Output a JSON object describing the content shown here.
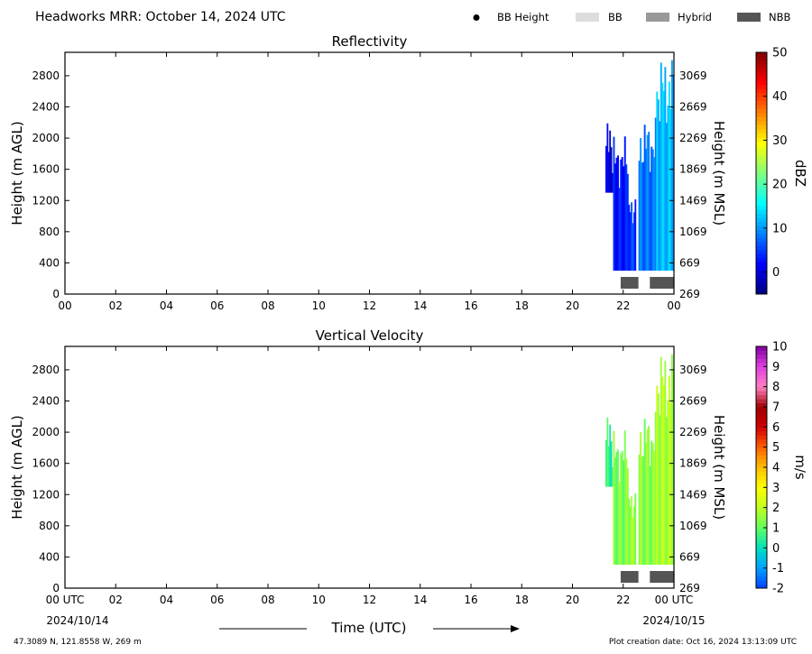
{
  "header": {
    "title": "Headworks MRR:  October 14, 2024 UTC",
    "legend": [
      {
        "label": "BB Height",
        "symbol": "dot",
        "color": "#000000"
      },
      {
        "label": "BB",
        "symbol": "rect",
        "color": "#dddddd"
      },
      {
        "label": "Hybrid",
        "symbol": "rect",
        "color": "#999999"
      },
      {
        "label": "NBB",
        "symbol": "rect",
        "color": "#555555"
      }
    ]
  },
  "footer": {
    "coords": "47.3089 N, 121.8558 W, 269 m",
    "creation": "Plot creation date: Oct 16, 2024 13:13:09 UTC",
    "xlabel": "Time (UTC)",
    "start_date": "2024/10/14",
    "end_date": "2024/10/15"
  },
  "chart_data": [
    {
      "type": "heatmap",
      "title": "Reflectivity",
      "ylabel": "Height (m AGL)",
      "ylabel_right": "Height (m MSL)",
      "xlim": [
        0,
        24
      ],
      "ylim": [
        0,
        3100
      ],
      "x_ticks": [
        "00",
        "02",
        "04",
        "06",
        "08",
        "10",
        "12",
        "14",
        "16",
        "18",
        "20",
        "22",
        "00"
      ],
      "y_ticks": [
        0,
        400,
        800,
        1200,
        1600,
        2000,
        2400,
        2800
      ],
      "y_ticks_right": [
        269,
        669,
        1069,
        1469,
        1869,
        2269,
        2669,
        3069
      ],
      "colorbar": {
        "label": "dBZ",
        "range": [
          -5,
          50
        ],
        "ticks": [
          0,
          10,
          20,
          30,
          40,
          50
        ],
        "colors": [
          "#00007f",
          "#0000ff",
          "#007fff",
          "#00ffff",
          "#7fff7f",
          "#ffff00",
          "#ff7f00",
          "#ff0000",
          "#7f0000"
        ]
      },
      "echo_segments": [
        {
          "t0": 21.3,
          "t1": 21.6,
          "bottom": 1300,
          "top": 1900,
          "value": 0
        },
        {
          "t0": 21.6,
          "t1": 22.2,
          "bottom": 300,
          "top": 1700,
          "value": 3
        },
        {
          "t0": 22.2,
          "t1": 22.5,
          "bottom": 300,
          "top": 1100,
          "value": 5
        },
        {
          "t0": 22.6,
          "t1": 23.3,
          "bottom": 300,
          "top": 1900,
          "value": 8
        },
        {
          "t0": 23.3,
          "t1": 24.0,
          "bottom": 300,
          "top": 2600,
          "value": 12
        }
      ],
      "bright_band_class": [
        {
          "t0": 21.9,
          "t1": 22.6,
          "class": "NBB"
        },
        {
          "t0": 23.05,
          "t1": 24.0,
          "class": "NBB"
        }
      ]
    },
    {
      "type": "heatmap",
      "title": "Vertical Velocity",
      "ylabel": "Height (m AGL)",
      "ylabel_right": "Height (m MSL)",
      "xlim": [
        0,
        24
      ],
      "ylim": [
        0,
        3100
      ],
      "x_ticks": [
        "00 UTC",
        "02",
        "04",
        "06",
        "08",
        "10",
        "12",
        "14",
        "16",
        "18",
        "20",
        "22",
        "00 UTC"
      ],
      "y_ticks": [
        0,
        400,
        800,
        1200,
        1600,
        2000,
        2400,
        2800
      ],
      "y_ticks_right": [
        269,
        669,
        1069,
        1469,
        1869,
        2269,
        2669,
        3069
      ],
      "colorbar": {
        "label": "m/s",
        "range": [
          -2,
          10
        ],
        "ticks": [
          -2,
          -1,
          0,
          1,
          2,
          3,
          4,
          5,
          6,
          7,
          8,
          9,
          10
        ],
        "colors": [
          "#0040ff",
          "#00a0ff",
          "#00e0c0",
          "#60ff60",
          "#c0ff20",
          "#ffff00",
          "#ffc000",
          "#ff6000",
          "#d00000",
          "#a00000",
          "#ff80c0",
          "#e040e0",
          "#8000a0"
        ]
      },
      "echo_segments": [
        {
          "t0": 21.3,
          "t1": 21.6,
          "bottom": 1300,
          "top": 1900,
          "value": 0.5
        },
        {
          "t0": 21.6,
          "t1": 22.2,
          "bottom": 300,
          "top": 1700,
          "value": 1.3
        },
        {
          "t0": 22.2,
          "t1": 22.5,
          "bottom": 300,
          "top": 1100,
          "value": 1.6
        },
        {
          "t0": 22.6,
          "t1": 23.3,
          "bottom": 300,
          "top": 1900,
          "value": 1.4
        },
        {
          "t0": 23.3,
          "t1": 24.0,
          "bottom": 300,
          "top": 2600,
          "value": 1.8
        }
      ],
      "bright_band_class": [
        {
          "t0": 21.9,
          "t1": 22.6,
          "class": "NBB"
        },
        {
          "t0": 23.05,
          "t1": 24.0,
          "class": "NBB"
        }
      ]
    }
  ]
}
